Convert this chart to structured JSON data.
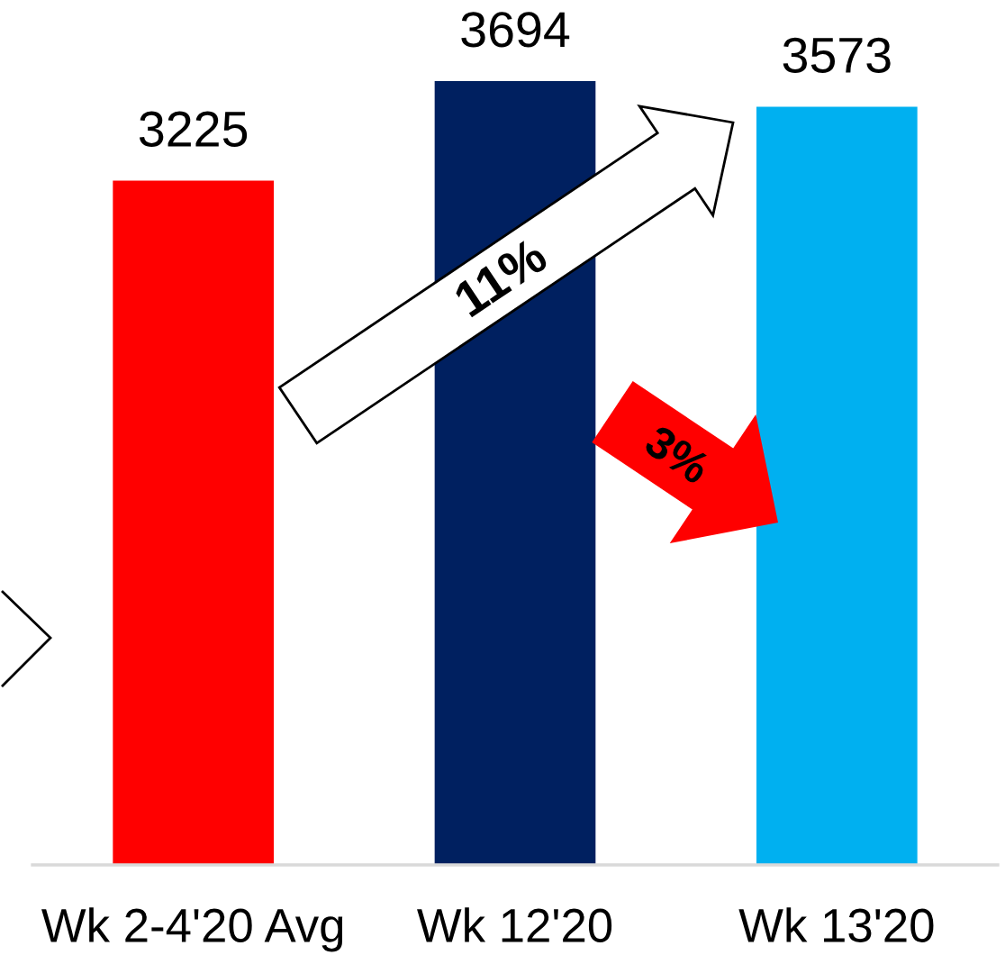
{
  "chart_data": {
    "type": "bar",
    "categories": [
      "Wk 2-4'20 Avg",
      "Wk 12'20",
      "Wk 13'20"
    ],
    "values": [
      3225,
      3694,
      3573
    ],
    "colors": [
      "#ff0000",
      "#002060",
      "#00b0f0"
    ],
    "data_labels": true,
    "tick_labels": "x",
    "annotations": [
      "11%",
      "3%"
    ]
  }
}
